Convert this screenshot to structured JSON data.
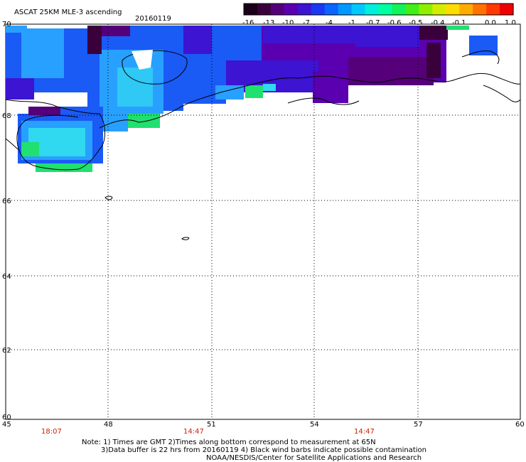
{
  "header": {
    "title": "ASCAT 25KM MLE-3 ascending",
    "date": "20160119"
  },
  "colorbar": {
    "labels": [
      "-16",
      "-13",
      "-10",
      "-7",
      "-4",
      "-1",
      "-0.7",
      "-0.6",
      "-0.5",
      "-0.4",
      "-0.1",
      "0.0",
      "1.0"
    ],
    "colors": [
      "#1a0018",
      "#3a003c",
      "#55007a",
      "#5a00b0",
      "#3c14d2",
      "#1a38f2",
      "#0a64ff",
      "#0098ff",
      "#00c8ff",
      "#00eedc",
      "#00ffa0",
      "#12f25a",
      "#40ee18",
      "#8cf000",
      "#d2ee00",
      "#ffdc00",
      "#ffac00",
      "#ff7200",
      "#ff3a00",
      "#f00000"
    ]
  },
  "axes": {
    "lat_labels": [
      "70",
      "68",
      "66",
      "64",
      "62",
      "60"
    ],
    "lon_labels": [
      "45",
      "48",
      "51",
      "54",
      "57",
      "60"
    ],
    "time_labels": [
      "18:07",
      "14:47",
      "14:47"
    ]
  },
  "legend_colors": {
    "swath_deep": "#3c14d2",
    "swath_mid": "#1a5af5",
    "swath_light": "#28a0ff",
    "swath_cyan": "#30d8f0",
    "swath_green": "#20e070",
    "swath_purple": "#5a00b0",
    "swath_dark": "#3a003c"
  },
  "notes": {
    "line1": "Note: 1) Times are GMT 2)Times along bottom correspond to measurement at 65N",
    "line2": "3)Data buffer is 22 hrs from 20160119 4) Black wind barbs indicate possible contamination",
    "line3": "NOAA/NESDIS/Center for Satellite Applications and Research"
  }
}
